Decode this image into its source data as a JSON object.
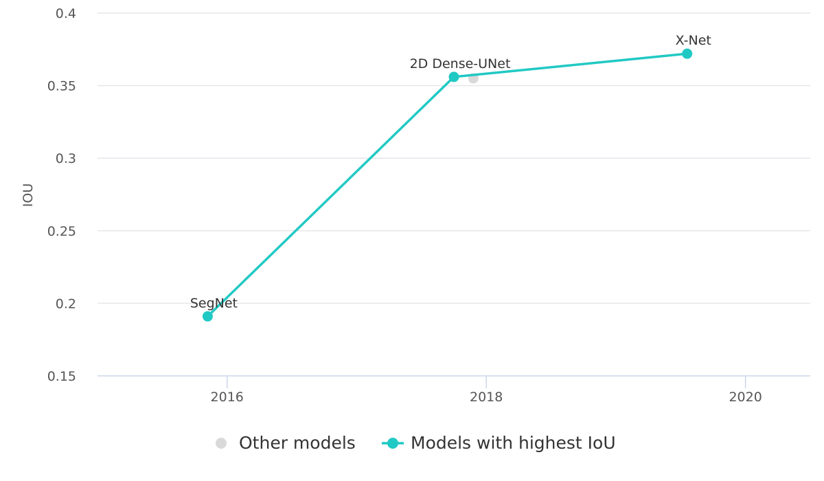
{
  "chart_data": {
    "type": "line",
    "title": "",
    "xlabel": "",
    "ylabel": "IOU",
    "xlim": [
      2015.0,
      2020.5
    ],
    "ylim": [
      0.15,
      0.4
    ],
    "x_ticks": [
      "2016",
      "2018",
      "2020"
    ],
    "x_tick_values": [
      2016,
      2018,
      2020
    ],
    "y_ticks": [
      "0.15",
      "0.2",
      "0.25",
      "0.3",
      "0.35",
      "0.4"
    ],
    "y_tick_values": [
      0.15,
      0.2,
      0.25,
      0.3,
      0.35,
      0.4
    ],
    "grid": true,
    "legend_position": "bottom",
    "series": [
      {
        "name": "Other models",
        "kind": "scatter",
        "color": "#d9d9d9",
        "points": [
          {
            "x": 2017.9,
            "y": 0.355
          }
        ]
      },
      {
        "name": "Models with highest IoU",
        "kind": "line",
        "color": "#21c9c4",
        "points": [
          {
            "x": 2015.85,
            "y": 0.191,
            "label": "SegNet"
          },
          {
            "x": 2017.75,
            "y": 0.356,
            "label": "2D Dense-UNet"
          },
          {
            "x": 2019.55,
            "y": 0.372,
            "label": "X-Net"
          }
        ]
      }
    ]
  }
}
